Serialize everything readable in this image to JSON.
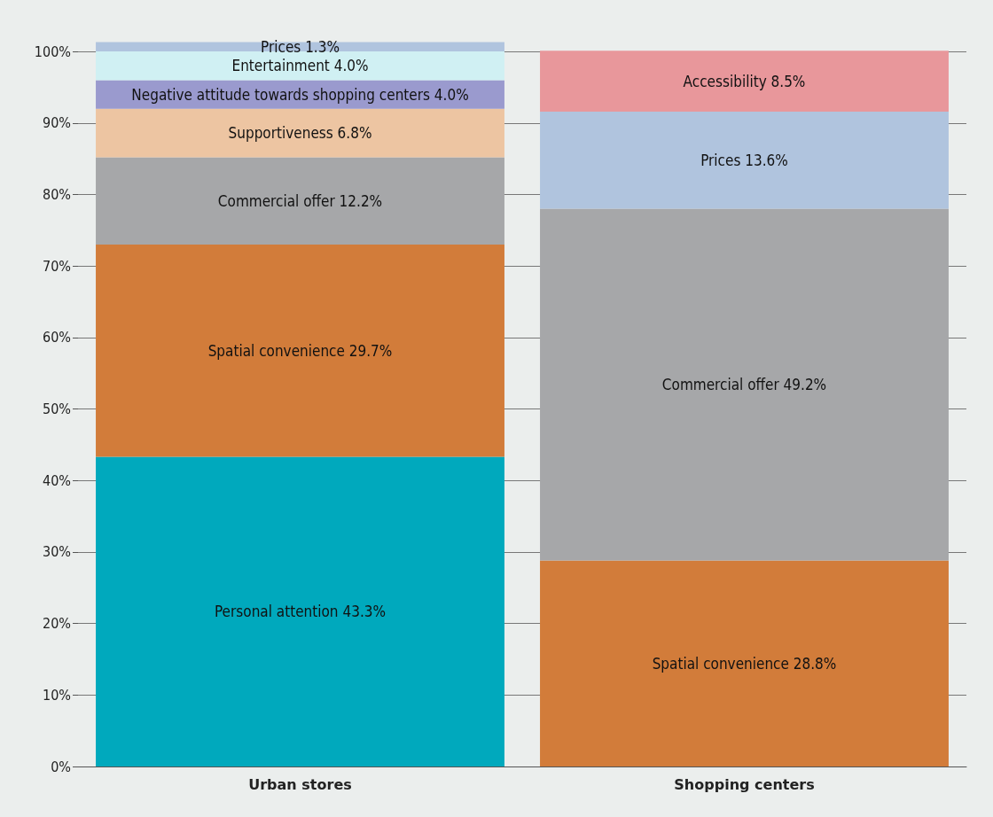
{
  "chart_data": {
    "type": "bar",
    "stacked": true,
    "categories": [
      "Urban stores",
      "Shopping centers"
    ],
    "series": [
      {
        "name": "Personal attention",
        "color": "#00a9bd",
        "values": [
          43.3,
          null
        ],
        "value_labels": [
          "43.3%",
          null
        ]
      },
      {
        "name": "Spatial convenience",
        "color": "#d27c3a",
        "values": [
          29.7,
          28.8
        ],
        "value_labels": [
          "29.7%",
          "28.8%"
        ]
      },
      {
        "name": "Commercial offer",
        "color": "#a6a7a9",
        "values": [
          12.2,
          49.2
        ],
        "value_labels": [
          "12.2%",
          "49.2%"
        ]
      },
      {
        "name": "Supportiveness",
        "color": "#edc5a2",
        "values": [
          6.8,
          null
        ],
        "value_labels": [
          "6.8%",
          null
        ]
      },
      {
        "name": "Negative attitude towards shopping centers",
        "color": "#9a9ace",
        "values": [
          4.0,
          null
        ],
        "value_labels": [
          "4.0%",
          null
        ]
      },
      {
        "name": "Entertainment",
        "color": "#d0f0f3",
        "values": [
          4.0,
          null
        ],
        "value_labels": [
          "4.0%",
          null
        ]
      },
      {
        "name": "Prices",
        "color": "#b0c4de",
        "values": [
          1.3,
          13.6
        ],
        "value_labels": [
          "1.3%",
          "13.6%"
        ]
      },
      {
        "name": "Accessibility",
        "color": "#e8979b",
        "values": [
          null,
          8.5
        ],
        "value_labels": [
          null,
          "8.5%"
        ]
      }
    ],
    "ylim": [
      0,
      101.5
    ],
    "yticks": [
      {
        "value": 0,
        "label": "0%"
      },
      {
        "value": 10,
        "label": "10%"
      },
      {
        "value": 20,
        "label": "20%"
      },
      {
        "value": 30,
        "label": "30%"
      },
      {
        "value": 40,
        "label": "40%"
      },
      {
        "value": 50,
        "label": "50%"
      },
      {
        "value": 60,
        "label": "60%"
      },
      {
        "value": 70,
        "label": "70%"
      },
      {
        "value": 80,
        "label": "80%"
      },
      {
        "value": 90,
        "label": "90%"
      },
      {
        "value": 100,
        "label": "100%"
      }
    ],
    "grid": "y",
    "legend": false
  }
}
